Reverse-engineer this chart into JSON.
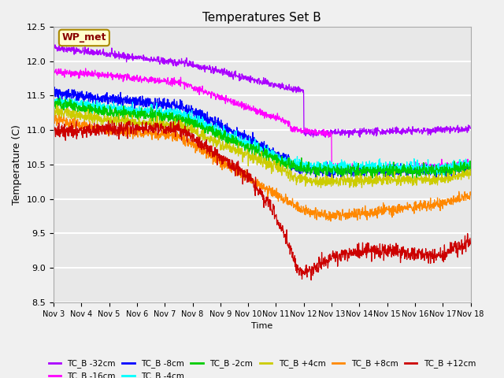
{
  "title": "Temperatures Set B",
  "xlabel": "Time",
  "ylabel": "Temperature (C)",
  "ylim": [
    8.5,
    12.5
  ],
  "xlim": [
    0,
    15
  ],
  "xtick_labels": [
    "Nov 3",
    "Nov 4",
    "Nov 5",
    "Nov 6",
    "Nov 7",
    "Nov 8",
    "Nov 9",
    "Nov 10",
    "Nov 11",
    "Nov 12",
    "Nov 13",
    "Nov 14",
    "Nov 15",
    "Nov 16",
    "Nov 17",
    "Nov 18"
  ],
  "wp_met_label": "WP_met",
  "series": {
    "TC_B -32cm": {
      "color": "#aa00ff"
    },
    "TC_B -16cm": {
      "color": "#ff00ff"
    },
    "TC_B -8cm": {
      "color": "#0000ff"
    },
    "TC_B -4cm": {
      "color": "#00ffff"
    },
    "TC_B -2cm": {
      "color": "#00cc00"
    },
    "TC_B +4cm": {
      "color": "#cccc00"
    },
    "TC_B +8cm": {
      "color": "#ff8800"
    },
    "TC_B +12cm": {
      "color": "#cc0000"
    }
  },
  "background_color": "#e8e8e8",
  "grid_color": "#ffffff"
}
